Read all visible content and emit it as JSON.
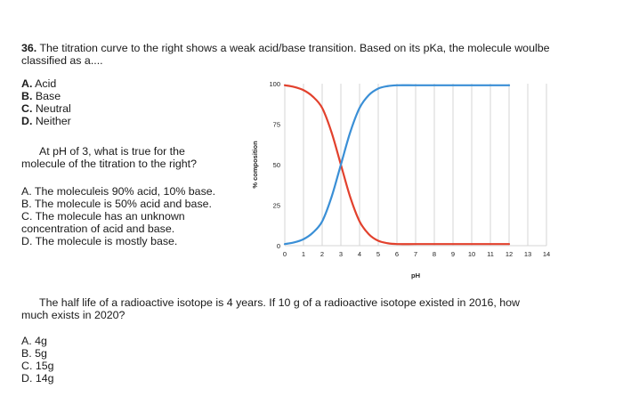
{
  "q36": {
    "number": "36.",
    "text_line1": "The titration curve to the right shows a weak acid/base transition. Based on its pKa, the molecule woulbe",
    "text_line2": "classified as a....",
    "options": [
      {
        "letter": "A.",
        "text": "Acid"
      },
      {
        "letter": "B.",
        "text": "Base"
      },
      {
        "letter": "C.",
        "text": "Neutral"
      },
      {
        "letter": "D.",
        "text": "Neither"
      }
    ]
  },
  "q_ph3": {
    "line1": "At pH of 3, what is true for the",
    "line2": "molecule of the titration to the right?",
    "options": [
      "A.  The moleculeis 90% acid, 10% base.",
      "B.  The molecule is 50% acid and base.",
      "C.  The molecule has an unknown",
      "      concentration of acid and base.",
      "D.  The molecule is mostly base."
    ]
  },
  "q_halflife": {
    "line1": "The half life of a radioactive isotope is 4 years. If 10 g of a radioactive isotope existed in 2016, how",
    "line2": "much exists in 2020?",
    "options": [
      "A.  4g",
      "B.  5g",
      "C.  15g",
      "D.  14g"
    ]
  },
  "colors": {
    "acid": "#e2412d",
    "base": "#3a8fd6",
    "grid": "#d4d4d4"
  },
  "chart_data": {
    "type": "line",
    "xlabel": "pH",
    "ylabel": "% composition",
    "xlim": [
      0,
      14
    ],
    "ylim": [
      0,
      100
    ],
    "x_ticks": [
      "0",
      "1",
      "2",
      "3",
      "4",
      "5",
      "6",
      "7",
      "8",
      "9",
      "10",
      "11",
      "12",
      "13",
      "14"
    ],
    "y_ticks": [
      "0",
      "25",
      "50",
      "75",
      "100"
    ],
    "grid": true,
    "series": [
      {
        "color_key": "acid",
        "x": [
          0,
          0.5,
          1,
          1.5,
          2,
          2.5,
          3,
          3.5,
          4,
          4.5,
          5,
          5.5,
          6,
          7,
          8,
          9,
          10,
          11,
          12
        ],
        "values": [
          99,
          98,
          96,
          92,
          85,
          70,
          50,
          30,
          15,
          7,
          3,
          1.5,
          1,
          1,
          1,
          1,
          1,
          1,
          1
        ]
      },
      {
        "color_key": "base",
        "x": [
          0,
          0.5,
          1,
          1.5,
          2,
          2.5,
          3,
          3.5,
          4,
          4.5,
          5,
          5.5,
          6,
          7,
          8,
          9,
          10,
          11,
          12
        ],
        "values": [
          1,
          2,
          4,
          8,
          15,
          30,
          50,
          70,
          85,
          93,
          97,
          98.5,
          99,
          99,
          99,
          99,
          99,
          99,
          99
        ]
      }
    ]
  }
}
